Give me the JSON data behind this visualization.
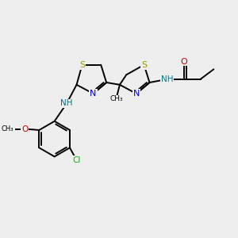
{
  "bg_color": "#eeeeee",
  "bond_color": "#000000",
  "S_color": "#999900",
  "N_color": "#0000cc",
  "O_color": "#cc0000",
  "Cl_color": "#00bb00",
  "NH_color": "#007788",
  "C_color": "#000000",
  "bond_width": 1.4,
  "figsize": [
    3.0,
    3.0
  ],
  "dpi": 100,
  "xlim": [
    0,
    10
  ],
  "ylim": [
    0,
    10
  ]
}
